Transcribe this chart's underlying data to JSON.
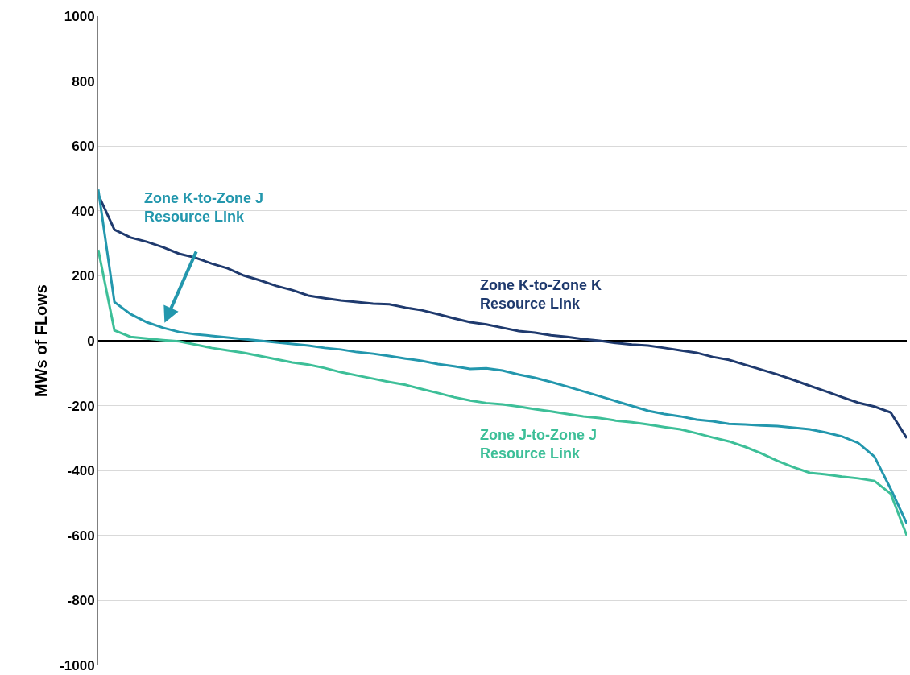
{
  "chart_data": {
    "type": "line",
    "ylabel": "MWs of FLows",
    "categories": [
      null,
      null,
      null,
      null,
      null,
      null,
      null,
      null,
      null,
      null,
      null,
      null,
      null,
      null,
      null,
      null,
      null,
      null,
      null,
      null,
      null,
      null,
      null,
      null,
      null,
      null,
      null,
      null,
      null,
      null,
      null,
      null,
      null,
      null,
      null,
      null,
      null,
      null,
      null,
      null,
      null,
      null,
      null,
      null,
      null,
      null,
      null,
      null,
      null,
      null,
      null
    ],
    "series": [
      {
        "name": "Zone K-to-Zone K\nResource Link",
        "color": "#1f3a6e",
        "values": [
          450,
          342,
          318,
          305,
          288,
          268,
          256,
          238,
          223,
          201,
          186,
          169,
          156,
          139,
          131,
          124,
          119,
          114,
          112,
          102,
          94,
          82,
          69,
          57,
          50,
          40,
          30,
          25,
          17,
          12,
          5,
          0,
          -7,
          -12,
          -15,
          -22,
          -30,
          -37,
          -50,
          -59,
          -74,
          -89,
          -104,
          -121,
          -139,
          -156,
          -174,
          -191,
          -203,
          -221,
          -300
        ]
      },
      {
        "name": "Zone K-to-Zone J\nResource Link",
        "color": "#2397ad",
        "values": [
          466,
          119,
          82,
          57,
          40,
          27,
          20,
          15,
          10,
          5,
          0,
          -5,
          -10,
          -15,
          -22,
          -27,
          -35,
          -40,
          -47,
          -55,
          -62,
          -72,
          -79,
          -87,
          -85,
          -92,
          -104,
          -114,
          -127,
          -141,
          -156,
          -171,
          -186,
          -201,
          -216,
          -226,
          -233,
          -243,
          -248,
          -256,
          -258,
          -261,
          -263,
          -268,
          -273,
          -283,
          -295,
          -315,
          -357,
          -456,
          -563
        ]
      },
      {
        "name": "Zone J-to-Zone J\nResource Link",
        "color": "#3dbf98",
        "values": [
          280,
          32,
          12,
          7,
          2,
          -2,
          -12,
          -22,
          -30,
          -37,
          -47,
          -57,
          -67,
          -74,
          -84,
          -97,
          -107,
          -117,
          -127,
          -136,
          -149,
          -161,
          -174,
          -184,
          -192,
          -196,
          -203,
          -211,
          -218,
          -226,
          -233,
          -238,
          -246,
          -251,
          -258,
          -266,
          -273,
          -285,
          -298,
          -310,
          -327,
          -347,
          -370,
          -390,
          -407,
          -412,
          -419,
          -424,
          -432,
          -471,
          -600
        ]
      }
    ],
    "ylim": [
      -1000,
      1000
    ],
    "yticks": [
      -1000,
      -800,
      -600,
      -400,
      -200,
      0,
      200,
      400,
      600,
      800,
      1000
    ],
    "grid": "y",
    "tick_labels": "y",
    "legend": false,
    "marker": "none",
    "line_style": "solid"
  }
}
